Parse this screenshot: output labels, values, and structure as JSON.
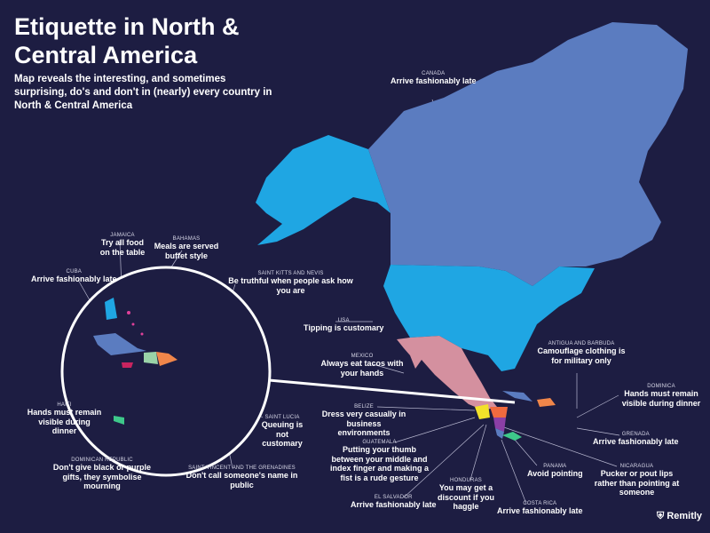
{
  "title": "Etiquette in North & Central America",
  "subtitle": "Map reveals the interesting, and sometimes surprising, do's and don't in (nearly) every country in North & Central America",
  "brand": "Remitly",
  "colors": {
    "background": "#1d1d42",
    "canada": "#5b7cc0",
    "usa": "#1fa6e3",
    "mexico": "#d4909f",
    "belize": "#f2e12a",
    "guatemala": "#f2e12a",
    "honduras": "#f06a3f",
    "nicaragua": "#8b3fa6",
    "costa_rica": "#5b7cc0",
    "panama": "#3ec88a",
    "cuba": "#5b7cc0",
    "haiti": "#9ad3a8",
    "dominican_republic": "#f0864a",
    "jamaica": "#c8245f",
    "bahamas": "#e0409a"
  },
  "labels": [
    {
      "country": "CANADA",
      "tip": "Arrive fashionably late"
    },
    {
      "country": "JAMAICA",
      "tip": "Try all food on the table"
    },
    {
      "country": "BAHAMAS",
      "tip": "Meals are served buffet style"
    },
    {
      "country": "CUBA",
      "tip": "Arrive fashionably late"
    },
    {
      "country": "SAINT KITTS AND NEVIS",
      "tip": "Be truthful when people ask how you are"
    },
    {
      "country": "USA",
      "tip": "Tipping is customary"
    },
    {
      "country": "MEXICO",
      "tip": "Always eat tacos with your hands"
    },
    {
      "country": "ANTIGUA AND BARBUDA",
      "tip": "Camouflage clothing is for military only"
    },
    {
      "country": "DOMINICA",
      "tip": "Hands must remain visible during dinner"
    },
    {
      "country": "HAITI",
      "tip": "Hands must remain visible during dinner"
    },
    {
      "country": "SAINT LUCIA",
      "tip": "Queuing is not customary"
    },
    {
      "country": "BELIZE",
      "tip": "Dress very casually in business environments"
    },
    {
      "country": "GRENADA",
      "tip": "Arrive fashionably late"
    },
    {
      "country": "GUATEMALA",
      "tip": "Putting your thumb between your middle and index finger and making a fist is a rude gesture"
    },
    {
      "country": "DOMINICAN REPUBLIC",
      "tip": "Don't give black or purple gifts, they symbolise mourning"
    },
    {
      "country": "SAINT VINCENT AND THE GRENADINES",
      "tip": "Don't call someone's name in public"
    },
    {
      "country": "PANAMA",
      "tip": "Avoid pointing"
    },
    {
      "country": "NICARAGUA",
      "tip": "Pucker or pout lips rather than pointing at someone"
    },
    {
      "country": "HONDURAS",
      "tip": "You may get a discount if you haggle"
    },
    {
      "country": "EL SALVADOR",
      "tip": "Arrive fashionably late"
    },
    {
      "country": "COSTA RICA",
      "tip": "Arrive fashionably late"
    }
  ]
}
